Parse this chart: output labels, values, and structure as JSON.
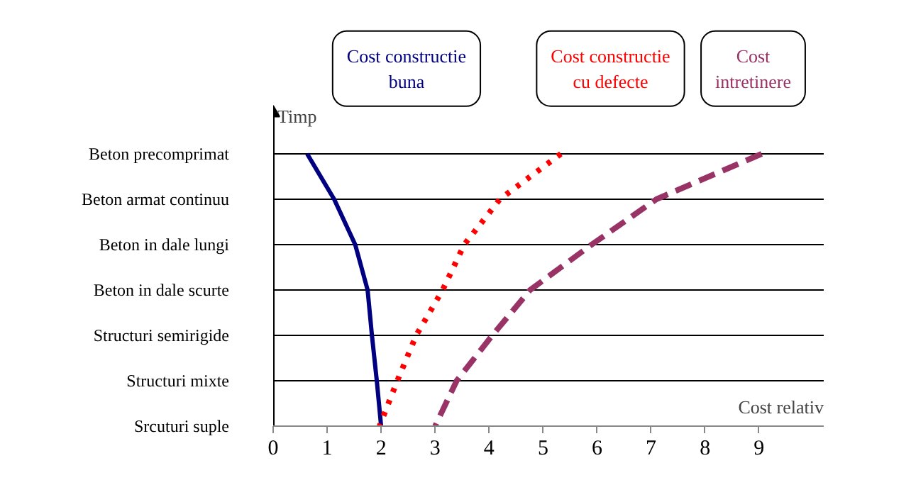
{
  "chart_data": {
    "type": "line",
    "orientation": "horizontal",
    "xlabel": "Cost relativ",
    "ylabel": "Timp",
    "xlim": [
      0,
      10.2
    ],
    "xticks": [
      0,
      1,
      2,
      3,
      4,
      5,
      6,
      7,
      8,
      9
    ],
    "categories": [
      "Beton precomprimat",
      "Beton armat continuu",
      "Beton in dale lungi",
      "Beton in dale scurte",
      "Structuri semirigide",
      "Structuri mixte",
      "Srcuturi suple"
    ],
    "grid": "y",
    "legend": false,
    "series": [
      {
        "name": "Cost constructie buna",
        "color": "#000080",
        "line_style": "solid",
        "values": [
          0.63,
          1.13,
          1.52,
          1.75,
          1.83,
          1.92,
          2.0
        ]
      },
      {
        "name": "Cost constructie cu defecte",
        "color": "#ff0000",
        "line_style": "dotted",
        "values": [
          5.33,
          4.2,
          3.54,
          3.14,
          2.65,
          2.3,
          1.97
        ]
      },
      {
        "name": "Cost intretinere",
        "color": "#993366",
        "line_style": "dashed",
        "values": [
          9.05,
          7.1,
          5.9,
          4.76,
          4.06,
          3.4,
          3.0
        ]
      }
    ]
  }
}
